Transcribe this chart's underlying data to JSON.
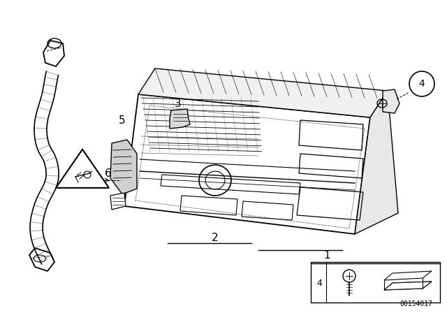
{
  "bg_color": "#ffffff",
  "line_color": "#000000",
  "fig_width": 6.4,
  "fig_height": 4.48,
  "dpi": 100,
  "part_number": "00154017"
}
